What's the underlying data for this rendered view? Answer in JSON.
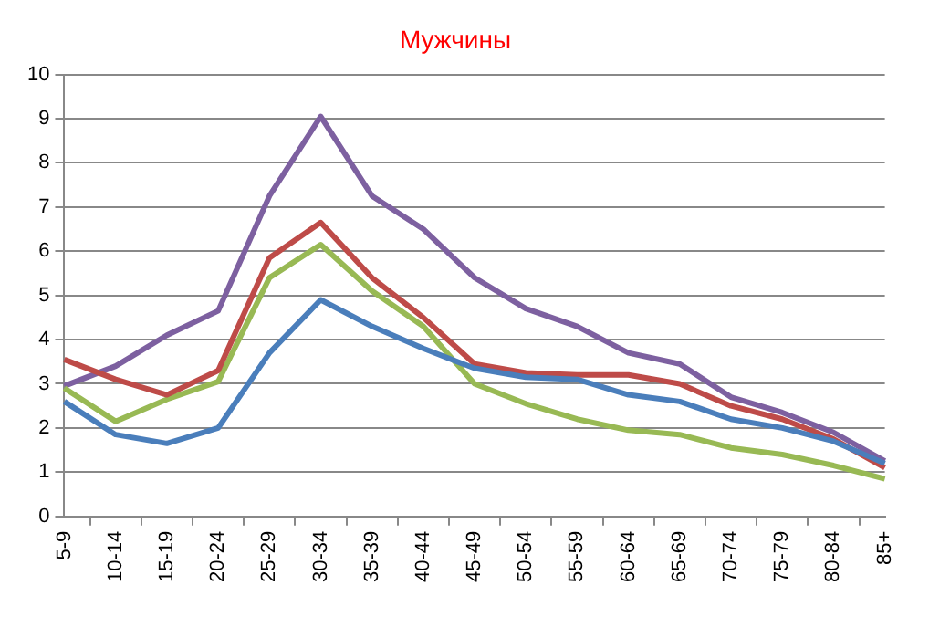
{
  "chart_data": {
    "type": "line",
    "title": "Мужчины",
    "categories": [
      "5-9",
      "10-14",
      "15-19",
      "20-24",
      "25-29",
      "30-34",
      "35-39",
      "40-44",
      "45-49",
      "50-54",
      "55-59",
      "60-64",
      "65-69",
      "70-74",
      "75-79",
      "80-84",
      "85+"
    ],
    "series": [
      {
        "color": "#4a7ebb",
        "values": [
          2.6,
          1.85,
          1.65,
          2.0,
          3.7,
          4.9,
          4.3,
          3.8,
          3.35,
          3.15,
          3.1,
          2.75,
          2.6,
          2.2,
          2.0,
          1.7,
          1.2
        ]
      },
      {
        "color": "#be4b48",
        "values": [
          3.55,
          3.1,
          2.75,
          3.3,
          5.85,
          6.65,
          5.4,
          4.5,
          3.45,
          3.25,
          3.2,
          3.2,
          3.0,
          2.5,
          2.2,
          1.75,
          1.1
        ]
      },
      {
        "color": "#98b954",
        "values": [
          2.9,
          2.15,
          2.65,
          3.05,
          5.4,
          6.15,
          5.1,
          4.3,
          3.0,
          2.55,
          2.2,
          1.95,
          1.85,
          1.55,
          1.4,
          1.15,
          0.85
        ]
      },
      {
        "color": "#7d60a0",
        "values": [
          2.95,
          3.4,
          4.1,
          4.65,
          7.25,
          9.05,
          7.25,
          6.5,
          5.4,
          4.7,
          4.3,
          3.7,
          3.45,
          2.7,
          2.35,
          1.9,
          1.25
        ]
      }
    ],
    "ylim": [
      0,
      10
    ],
    "yticks": [
      0,
      1,
      2,
      3,
      4,
      5,
      6,
      7,
      8,
      9,
      10
    ],
    "grid": "y",
    "legend": false,
    "marker": "none",
    "line_style": "solid"
  }
}
